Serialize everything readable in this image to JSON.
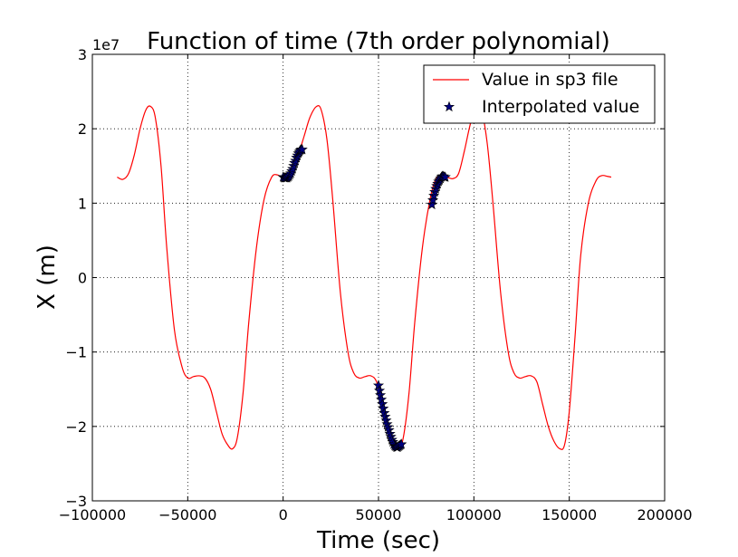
{
  "chart_data": {
    "type": "line",
    "title": "Function of time (7th order polynomial)",
    "xlabel": "Time (sec)",
    "ylabel": "X (m)",
    "y_offset_label": "1e7",
    "xlim": [
      -100000,
      200000
    ],
    "ylim": [
      -3,
      3
    ],
    "y_scale_factor": 10000000,
    "grid": true,
    "legend_position": "top-right",
    "xticks": [
      -100000,
      -50000,
      0,
      50000,
      100000,
      150000,
      200000
    ],
    "xtick_labels": [
      "−100000",
      "−50000",
      "0",
      "50000",
      "100000",
      "150000",
      "200000"
    ],
    "yticks": [
      -3,
      -2,
      -1,
      0,
      1,
      2,
      3
    ],
    "ytick_labels": [
      "−3",
      "−2",
      "−1",
      "0",
      "1",
      "2",
      "3"
    ],
    "colors": {
      "line": "#ff0000",
      "marker": "#000080",
      "grid": "#000000",
      "axes": "#000000"
    },
    "series": [
      {
        "name": "Value in sp3 file",
        "kind": "line",
        "x": [
          -87000,
          -84000,
          -81000,
          -78000,
          -75000,
          -72000,
          -69500,
          -67000,
          -64000,
          -61000,
          -57000,
          -53000,
          -50000,
          -47000,
          -44000,
          -41000,
          -38000,
          -35000,
          -32000,
          -29000,
          -26500,
          -24000,
          -21000,
          -18000,
          -14000,
          -10000,
          -6000,
          -3000,
          -1000,
          2000,
          5000,
          8000,
          11000,
          14000,
          17500,
          20000,
          23000,
          26000,
          30000,
          34000,
          37000,
          40000,
          43000,
          46000,
          49000,
          52000,
          55000,
          58000,
          60500,
          63000,
          66000,
          69000,
          73000,
          77000,
          80000,
          83000,
          86000,
          89000,
          92000,
          95000,
          98000,
          101000,
          104000,
          107000,
          110000,
          114000,
          118000,
          121000,
          124000,
          127000,
          130000,
          133000,
          136000,
          139000,
          142000,
          145000,
          147500,
          150000,
          153000,
          156000,
          160000,
          164000,
          167000,
          170000,
          172000
        ],
        "y": [
          1.35,
          1.32,
          1.4,
          1.65,
          2.0,
          2.25,
          2.3,
          2.15,
          1.5,
          0.4,
          -0.7,
          -1.2,
          -1.35,
          -1.33,
          -1.32,
          -1.35,
          -1.5,
          -1.8,
          -2.1,
          -2.25,
          -2.3,
          -2.15,
          -1.55,
          -0.6,
          0.4,
          1.05,
          1.35,
          1.38,
          1.35,
          1.35,
          1.42,
          1.65,
          1.9,
          2.15,
          2.3,
          2.25,
          1.85,
          1.05,
          -0.2,
          -1.0,
          -1.28,
          -1.35,
          -1.33,
          -1.32,
          -1.4,
          -1.7,
          -2.0,
          -2.25,
          -2.3,
          -2.15,
          -1.55,
          -0.6,
          0.4,
          1.05,
          1.32,
          1.38,
          1.35,
          1.33,
          1.4,
          1.7,
          2.05,
          2.3,
          2.25,
          1.8,
          1.0,
          -0.2,
          -1.0,
          -1.28,
          -1.35,
          -1.33,
          -1.32,
          -1.4,
          -1.7,
          -2.0,
          -2.2,
          -2.3,
          -2.25,
          -1.8,
          -0.8,
          0.3,
          1.0,
          1.3,
          1.37,
          1.36,
          1.35
        ]
      },
      {
        "name": "Interpolated value",
        "kind": "scatter",
        "marker": "star",
        "x": [
          0,
          500,
          1000,
          1500,
          2000,
          2500,
          3000,
          3500,
          4000,
          4500,
          5000,
          5500,
          6000,
          6500,
          7000,
          7500,
          8000,
          8500,
          9000,
          9500,
          10000,
          50000,
          50500,
          51000,
          51500,
          52000,
          52500,
          53000,
          53500,
          54000,
          54500,
          55000,
          55500,
          56000,
          56500,
          57000,
          57500,
          58000,
          58500,
          59000,
          59500,
          60000,
          60500,
          61000,
          61500,
          62000,
          78000,
          78500,
          79000,
          79500,
          80000,
          80500,
          81000,
          81500,
          82000,
          82500,
          83000,
          83500,
          84000,
          84500,
          85000
        ],
        "y": [
          1.35,
          1.34,
          1.34,
          1.34,
          1.34,
          1.35,
          1.36,
          1.38,
          1.4,
          1.43,
          1.46,
          1.5,
          1.54,
          1.57,
          1.61,
          1.64,
          1.67,
          1.69,
          1.71,
          1.72,
          1.72,
          -1.45,
          -1.52,
          -1.58,
          -1.64,
          -1.7,
          -1.76,
          -1.82,
          -1.87,
          -1.92,
          -1.97,
          -2.01,
          -2.05,
          -2.1,
          -2.14,
          -2.18,
          -2.21,
          -2.24,
          -2.26,
          -2.27,
          -2.28,
          -2.28,
          -2.27,
          -2.26,
          -2.25,
          -2.24,
          0.98,
          1.04,
          1.1,
          1.15,
          1.19,
          1.23,
          1.26,
          1.29,
          1.31,
          1.33,
          1.35,
          1.36,
          1.36,
          1.35,
          1.35
        ]
      }
    ]
  }
}
